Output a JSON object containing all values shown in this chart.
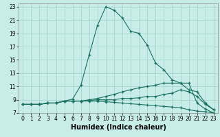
{
  "xlabel": "Humidex (Indice chaleur)",
  "bg_color": "#c8ece8",
  "grid_color": "#a8d8d0",
  "line_color": "#1a7060",
  "xlim": [
    -0.5,
    23.5
  ],
  "ylim": [
    7,
    23.5
  ],
  "xticks": [
    0,
    1,
    2,
    3,
    4,
    5,
    6,
    7,
    8,
    9,
    10,
    11,
    12,
    13,
    14,
    15,
    16,
    17,
    18,
    19,
    20,
    21,
    22,
    23
  ],
  "yticks": [
    7,
    9,
    11,
    13,
    15,
    17,
    19,
    21,
    23
  ],
  "line1_x": [
    0,
    1,
    2,
    3,
    4,
    5,
    6,
    7,
    8,
    9,
    10,
    11,
    12,
    13,
    14,
    15,
    16,
    17,
    18,
    19,
    20,
    21,
    22,
    23
  ],
  "line1_y": [
    8.3,
    8.3,
    8.3,
    8.5,
    8.5,
    8.8,
    9.1,
    11.2,
    15.8,
    20.2,
    23.0,
    22.5,
    21.3,
    19.3,
    19.0,
    17.2,
    14.5,
    13.5,
    12.0,
    11.5,
    11.5,
    8.5,
    7.6,
    7.0
  ],
  "line2_x": [
    0,
    1,
    2,
    3,
    4,
    5,
    6,
    7,
    8,
    9,
    10,
    11,
    12,
    13,
    14,
    15,
    16,
    17,
    18,
    19,
    20,
    21,
    22,
    23
  ],
  "line2_y": [
    8.3,
    8.3,
    8.3,
    8.5,
    8.5,
    8.8,
    8.8,
    8.8,
    9.0,
    9.2,
    9.5,
    9.8,
    10.2,
    10.5,
    10.8,
    11.0,
    11.2,
    11.5,
    11.5,
    11.5,
    10.5,
    10.2,
    8.5,
    7.5
  ],
  "line3_x": [
    0,
    1,
    2,
    3,
    4,
    5,
    6,
    7,
    8,
    9,
    10,
    11,
    12,
    13,
    14,
    15,
    16,
    17,
    18,
    19,
    20,
    21,
    22,
    23
  ],
  "line3_y": [
    8.3,
    8.3,
    8.3,
    8.5,
    8.5,
    8.8,
    8.8,
    8.8,
    8.9,
    9.0,
    9.0,
    9.0,
    9.2,
    9.2,
    9.3,
    9.5,
    9.5,
    9.8,
    10.0,
    10.5,
    10.2,
    9.5,
    8.3,
    7.5
  ],
  "line4_x": [
    0,
    1,
    2,
    3,
    4,
    5,
    6,
    7,
    8,
    9,
    10,
    11,
    12,
    13,
    14,
    15,
    16,
    17,
    18,
    19,
    20,
    21,
    22,
    23
  ],
  "line4_y": [
    8.3,
    8.3,
    8.3,
    8.5,
    8.5,
    8.8,
    8.8,
    8.8,
    8.8,
    8.8,
    8.7,
    8.6,
    8.5,
    8.4,
    8.3,
    8.2,
    8.1,
    8.0,
    7.9,
    7.8,
    7.5,
    7.3,
    7.2,
    7.0
  ],
  "xlabel_fontsize": 7,
  "tick_fontsize": 5.5
}
